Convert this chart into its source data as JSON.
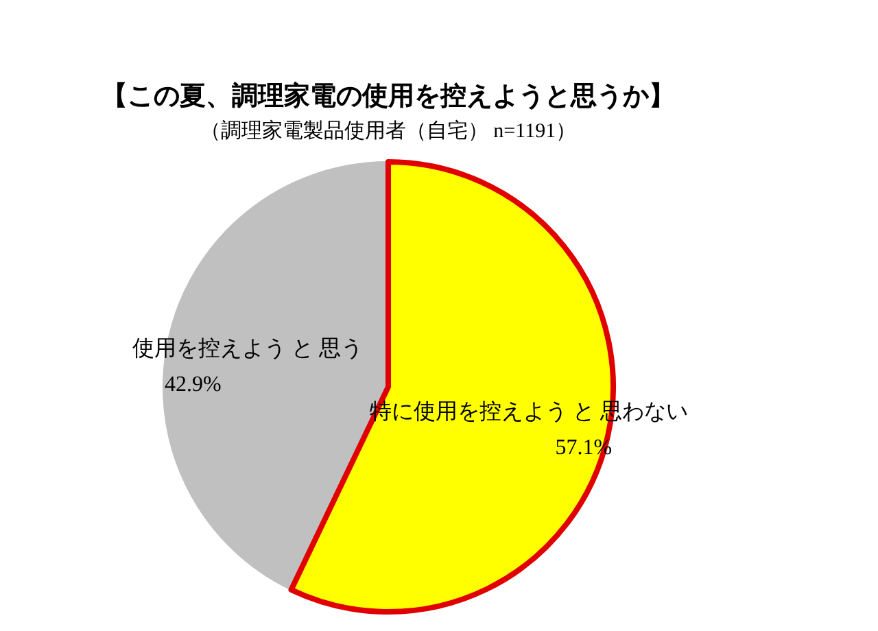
{
  "chart_data": {
    "type": "pie",
    "title": "【この夏、調理家電の使用を控えようと思うか】",
    "subtitle": "（調理家電製品使用者（自宅） n=1191）",
    "categories": [
      "特に使用を控えよう と 思わない",
      "使用を控えよう と 思う"
    ],
    "values": [
      57.1,
      42.9
    ],
    "colors": [
      "#ffff00",
      "#c0c0c0"
    ],
    "value_labels": [
      "57.1%",
      "42.9%"
    ]
  }
}
